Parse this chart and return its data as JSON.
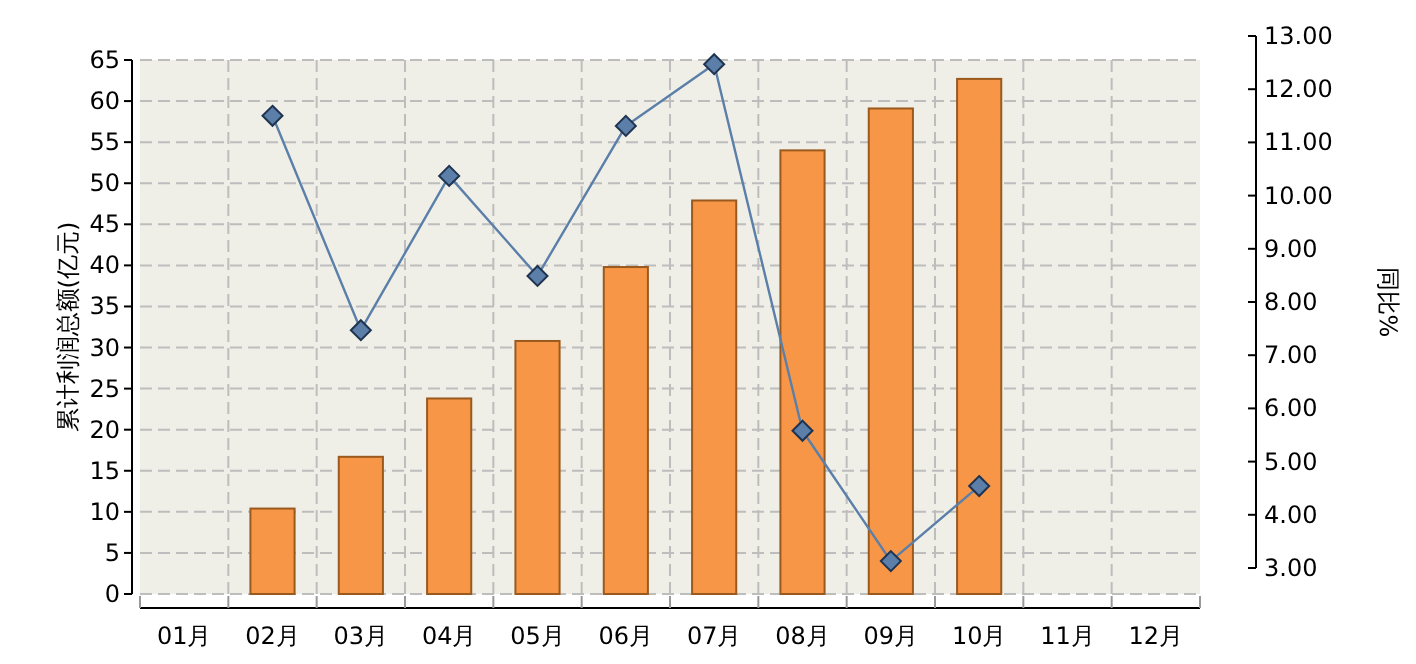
{
  "chart_data": {
    "type": "bar",
    "categories": [
      "01月",
      "02月",
      "03月",
      "04月",
      "05月",
      "06月",
      "07月",
      "08月",
      "09月",
      "10月",
      "11月",
      "12月"
    ],
    "ylabel": "累计利润总额(亿元)",
    "y2label": "同比%",
    "ylim": [
      0,
      65
    ],
    "yticks": [
      0,
      5,
      10,
      15,
      20,
      25,
      30,
      35,
      40,
      45,
      50,
      55,
      60,
      65
    ],
    "y2lim": [
      3,
      13
    ],
    "y2ticks": [
      {
        "value": 3,
        "label": "3.00"
      },
      {
        "value": 4,
        "label": "4.00"
      },
      {
        "value": 5,
        "label": "5.00"
      },
      {
        "value": 6,
        "label": "6.00"
      },
      {
        "value": 7,
        "label": "7.00"
      },
      {
        "value": 8,
        "label": "8.00"
      },
      {
        "value": 9,
        "label": "9.00"
      },
      {
        "value": 10,
        "label": "10.00"
      },
      {
        "value": 11,
        "label": "11.00"
      },
      {
        "value": 12,
        "label": "12.00"
      },
      {
        "value": 13,
        "label": "13.00"
      }
    ],
    "grid": true,
    "series": [
      {
        "color": "#f79646",
        "values": [
          null,
          10.4,
          16.7,
          23.8,
          30.8,
          39.8,
          47.9,
          54.0,
          59.1,
          62.7,
          null,
          null
        ]
      },
      {
        "type": "line",
        "axis": "y2",
        "color": "#5b7fa8",
        "marker": "diamond",
        "values": [
          null,
          11.5,
          7.47,
          10.37,
          8.49,
          11.31,
          12.47,
          5.58,
          3.13,
          4.54,
          null,
          null
        ]
      }
    ]
  }
}
